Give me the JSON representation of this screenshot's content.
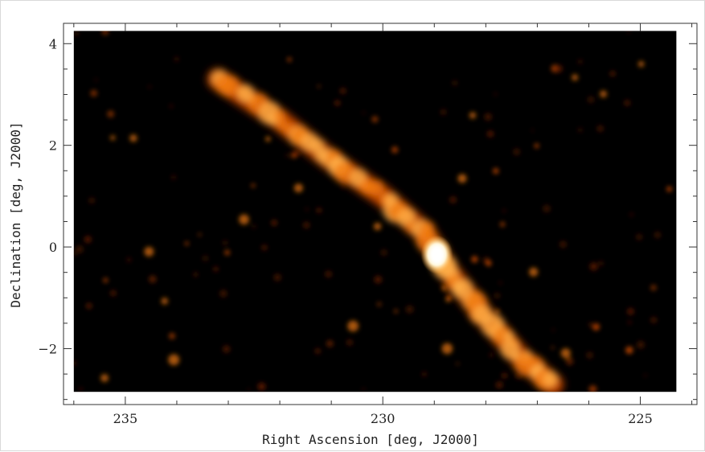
{
  "chart_data": {
    "type": "heatmap",
    "title": "",
    "xlabel": "Right Ascension [deg, J2000]",
    "ylabel": "Declination [deg, J2000]",
    "xlim": [
      236.2,
      223.9
    ],
    "ylim": [
      -3.1,
      4.4
    ],
    "image_extent": {
      "ra": [
        236.0,
        224.3
      ],
      "dec": [
        -2.85,
        4.25
      ]
    },
    "x_ticks": [
      235,
      230,
      225
    ],
    "y_ticks": [
      -2,
      0,
      2,
      4
    ],
    "x_tick_labels": [
      "235",
      "230",
      "225"
    ],
    "y_tick_labels": [
      "−2",
      "0",
      "2",
      "4"
    ],
    "colormap": [
      "#000000",
      "#5a1a00",
      "#b84300",
      "#f07a10",
      "#ffb04a",
      "#ffffff"
    ],
    "features": {
      "stream_ridge": [
        {
          "ra": 233.2,
          "dec": 3.3
        },
        {
          "ra": 232.0,
          "dec": 2.5
        },
        {
          "ra": 231.0,
          "dec": 1.7
        },
        {
          "ra": 230.0,
          "dec": 1.0
        },
        {
          "ra": 229.2,
          "dec": 0.3
        },
        {
          "ra": 228.7,
          "dec": -0.5
        },
        {
          "ra": 228.0,
          "dec": -1.4
        },
        {
          "ra": 227.3,
          "dec": -2.2
        },
        {
          "ra": 226.7,
          "dec": -2.7
        }
      ],
      "peak": {
        "ra": 228.95,
        "dec": -0.15
      }
    }
  }
}
